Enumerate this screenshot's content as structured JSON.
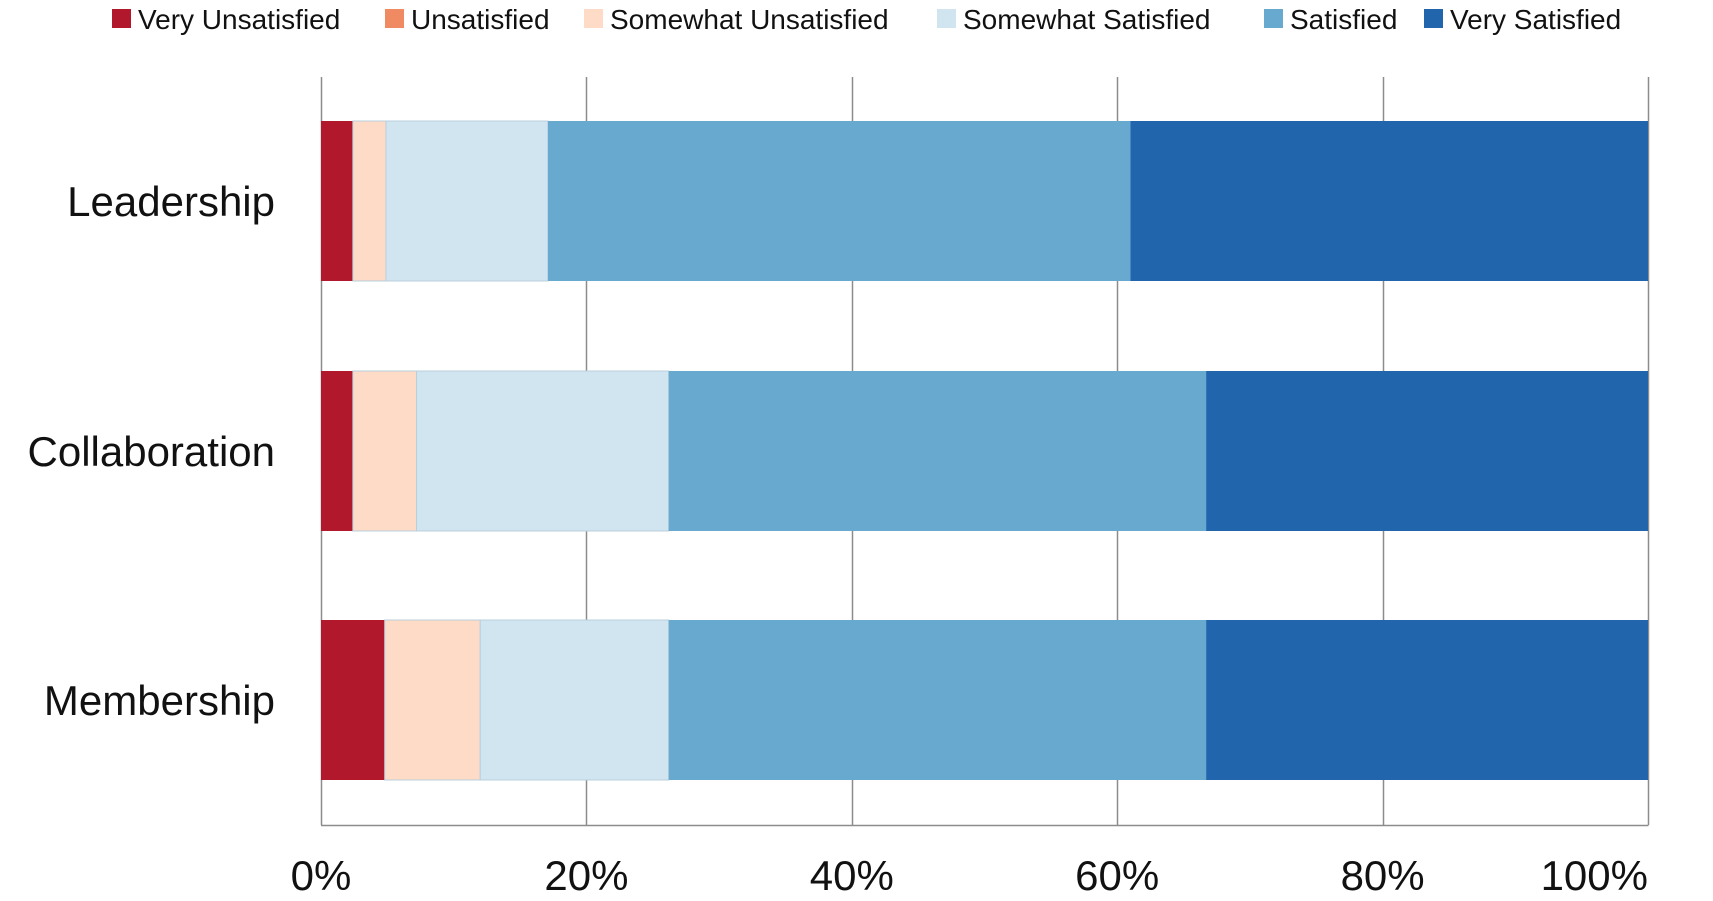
{
  "chart_data": {
    "type": "bar",
    "orientation": "horizontal",
    "stacked": true,
    "percent_stacked": true,
    "categories": [
      "Leadership",
      "Collaboration",
      "Membership"
    ],
    "series": [
      {
        "name": "Very Unsatisfied",
        "color": "#b2182b",
        "values": [
          2.4,
          2.4,
          4.8
        ]
      },
      {
        "name": "Unsatisfied",
        "color": "#ef8a62",
        "values": [
          0,
          0,
          0
        ]
      },
      {
        "name": "Somewhat Unsatisfied",
        "color": "#fddbc7",
        "values": [
          2.5,
          4.8,
          7.2
        ]
      },
      {
        "name": "Somewhat Satisfied",
        "color": "#d1e5f0",
        "values": [
          12.2,
          19.0,
          14.2
        ]
      },
      {
        "name": "Satisfied",
        "color": "#67a9cf",
        "values": [
          43.9,
          40.5,
          40.5
        ]
      },
      {
        "name": "Very Satisfied",
        "color": "#2166ac",
        "values": [
          39.0,
          33.3,
          33.3
        ]
      }
    ],
    "x_ticks": [
      "0%",
      "20%",
      "40%",
      "60%",
      "80%",
      "100%"
    ],
    "xlim": [
      0,
      100
    ],
    "grid": "vertical",
    "legend_position": "top",
    "title": "",
    "xlabel": "",
    "ylabel": ""
  }
}
